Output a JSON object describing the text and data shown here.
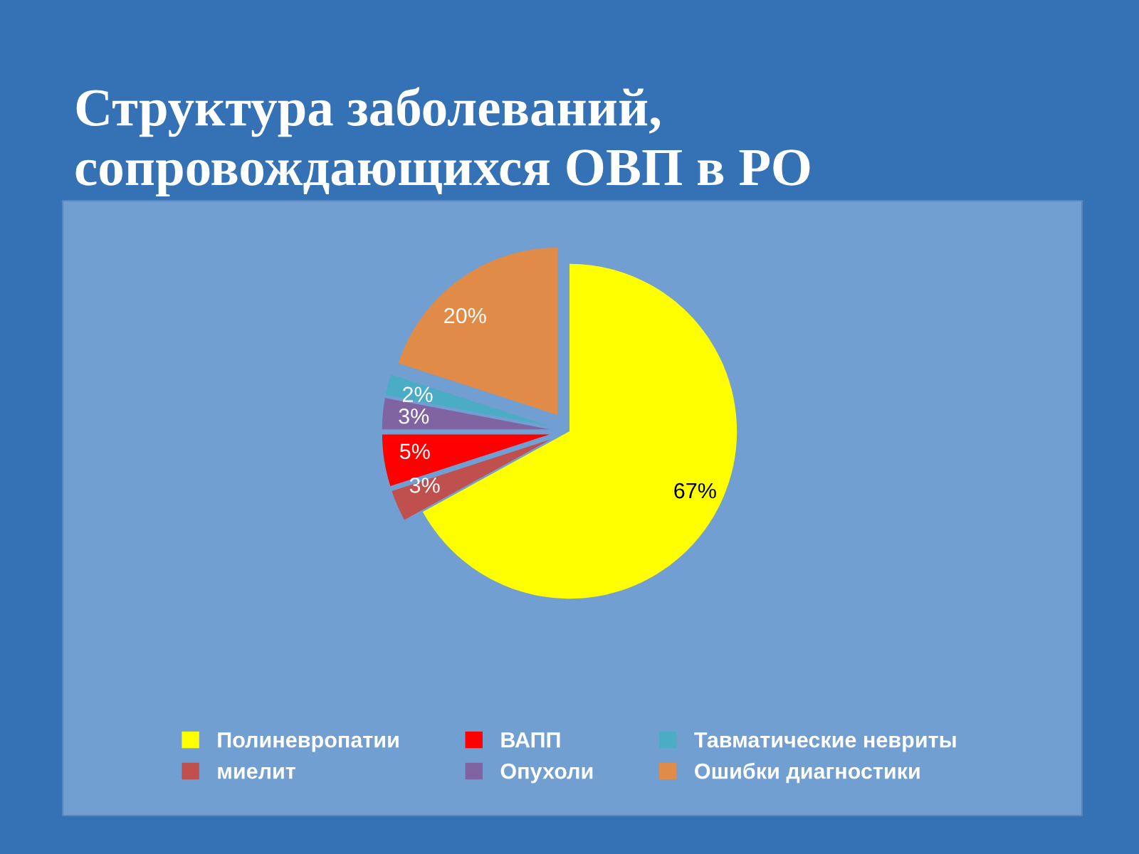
{
  "chart_data": {
    "type": "pie",
    "title": "Структура заболеваний,\nсопровождающихся ОВП в РО",
    "categories": [
      "Полиневропатии",
      "миелит",
      "ВАПП",
      "Опухоли",
      "Тавматические невриты",
      "Ошибки диагностики"
    ],
    "values": [
      67,
      3,
      5,
      3,
      2,
      20
    ],
    "colors": [
      "#ffff00",
      "#c0504d",
      "#ff0000",
      "#8064a2",
      "#4bacc6",
      "#e08c48"
    ],
    "value_labels": [
      "67%",
      "3%",
      "5%",
      "3%",
      "2%",
      "20%"
    ],
    "legend": "bottom"
  }
}
